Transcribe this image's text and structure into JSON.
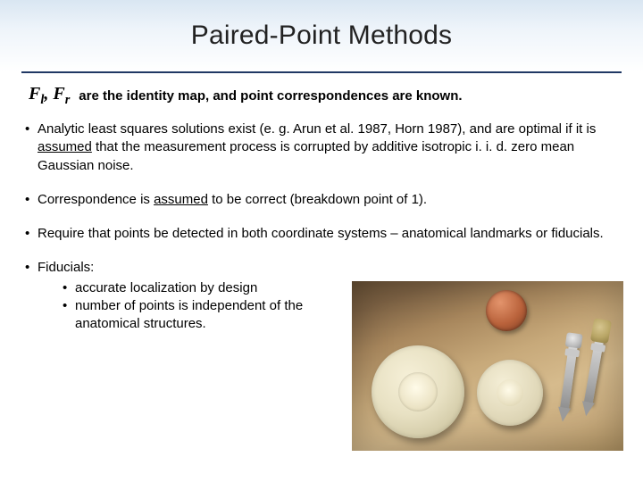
{
  "title": "Paired-Point Methods",
  "intro_text": "are the identity map, and point correspondences are known.",
  "math": {
    "F": "F",
    "l": "l",
    "comma": ", ",
    "r": "r"
  },
  "bullets": [
    {
      "pre": "Analytic least squares solutions exist (e. g. Arun et al. 1987, Horn 1987), and are optimal if it is ",
      "under": "assumed",
      "post": " that the measurement process is corrupted by additive isotropic i. i. d. zero mean Gaussian noise."
    },
    {
      "pre": "Correspondence is ",
      "under": "assumed",
      "post": " to be correct (breakdown point of 1)."
    },
    {
      "plain": "Require that points be detected in both coordinate systems – anatomical landmarks or fiducials."
    }
  ],
  "fiducials": {
    "label": "Fiducials:",
    "subs": [
      "accurate localization by design",
      "number of points is independent of the anatomical structures."
    ]
  },
  "colors": {
    "hr": "#203864",
    "title_band_top": "#d9e6f2"
  }
}
